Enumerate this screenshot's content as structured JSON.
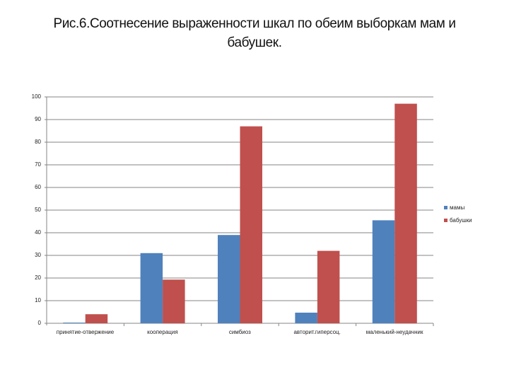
{
  "title": "Рис.6.Соотнесение выраженности шкал по обеим выборкам мам и бабушек.",
  "colors": {
    "mothers": "#4F81BD",
    "grandmothers": "#C0504D",
    "grid": "#868686"
  },
  "chart_data": {
    "type": "bar",
    "title": "Рис.6.Соотнесение выраженности шкал по обеим выборкам мам и бабушек.",
    "xlabel": "",
    "ylabel": "",
    "ylim": [
      0,
      100
    ],
    "yticks": [
      0,
      10,
      20,
      30,
      40,
      50,
      60,
      70,
      80,
      90,
      100
    ],
    "grid": true,
    "legend_position": "right",
    "categories": [
      "принятие-отвержение",
      "кооперация",
      "симбиоз",
      "авторит.гиперсоц.",
      "маленький-неудачник"
    ],
    "series": [
      {
        "name": "мамы",
        "color": "#4F81BD",
        "values": [
          0.3,
          31,
          39,
          4.7,
          45.5
        ]
      },
      {
        "name": "бабушки",
        "color": "#C0504D",
        "values": [
          4,
          19.3,
          87,
          32,
          97
        ]
      }
    ]
  },
  "legend": [
    {
      "label": "мамы",
      "color": "#4F81BD"
    },
    {
      "label": "бабушки",
      "color": "#C0504D"
    }
  ]
}
